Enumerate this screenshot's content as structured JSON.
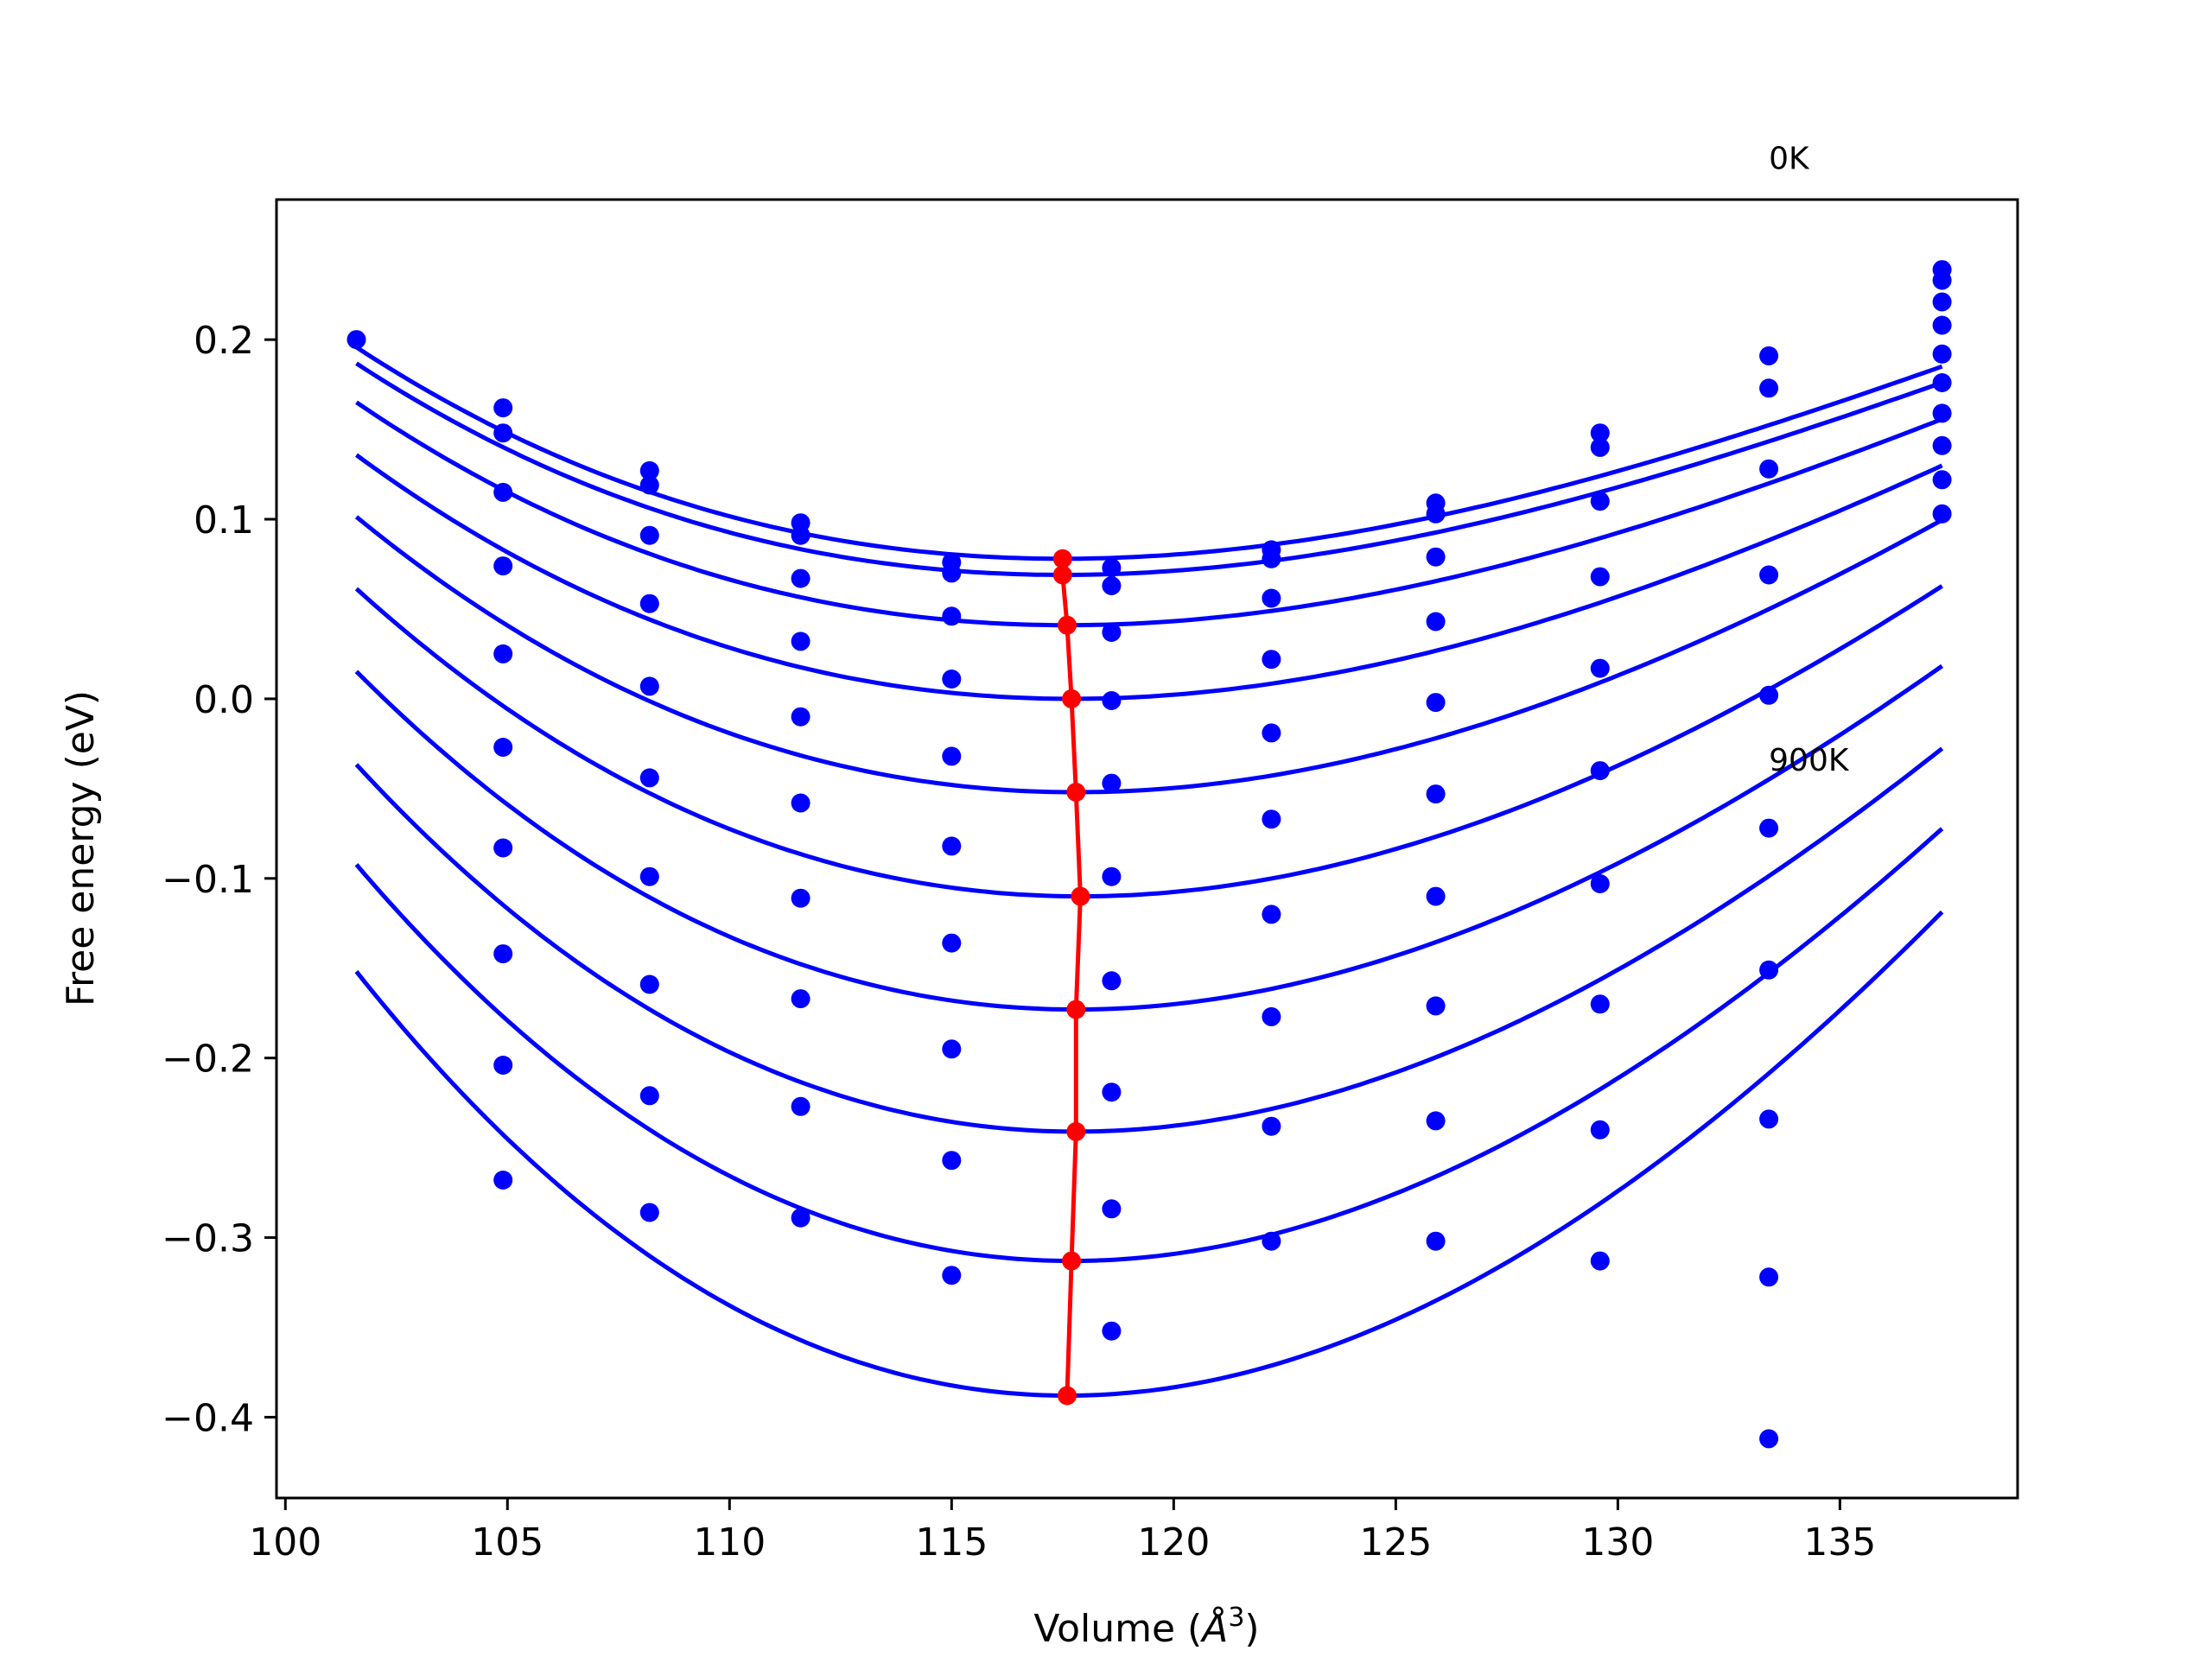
{
  "chart_data": {
    "type": "line",
    "title": "",
    "xlabel_main": "Volume (",
    "xlabel_unit": "Å",
    "xlabel_sup": "3",
    "xlabel_close": ")",
    "ylabel": "Free energy (eV)",
    "xlim": [
      99.8,
      139.0
    ],
    "ylim": [
      -0.445,
      0.278
    ],
    "xticks": [
      100,
      105,
      110,
      115,
      120,
      125,
      130,
      135
    ],
    "xtick_labels": [
      "100",
      "105",
      "110",
      "115",
      "120",
      "125",
      "130",
      "135"
    ],
    "yticks": [
      -0.4,
      -0.3,
      -0.2,
      -0.1,
      0.0,
      0.1,
      0.2
    ],
    "ytick_labels": [
      "−0.4",
      "−0.3",
      "−0.2",
      "−0.1",
      "0.0",
      "0.1",
      "0.2"
    ],
    "grid": false,
    "annotations": [
      {
        "text": "0K",
        "x": 133.4,
        "y": 0.295
      },
      {
        "text": "900K",
        "x": 133.4,
        "y": -0.04
      }
    ],
    "volumes": [
      101.6,
      104.9,
      108.2,
      111.6,
      115.0,
      118.6,
      122.2,
      125.9,
      129.6,
      133.4,
      137.3
    ],
    "fit_curves": [
      {
        "vmin": 117.5,
        "fmin": 0.078,
        "b": 0.00038,
        "c": 5.4e-06,
        "x_start": 101.6,
        "x_end": 137.3
      },
      {
        "vmin": 117.5,
        "fmin": 0.069,
        "b": 0.00038,
        "c": 5.4e-06,
        "x_start": 101.6,
        "x_end": 137.3
      },
      {
        "vmin": 117.6,
        "fmin": 0.041,
        "b": 0.0004,
        "c": 5.3e-06,
        "x_start": 101.6,
        "x_end": 137.3
      },
      {
        "vmin": 117.7,
        "fmin": 0.0,
        "b": 0.00044,
        "c": 5.2e-06,
        "x_start": 101.6,
        "x_end": 137.3
      },
      {
        "vmin": 117.8,
        "fmin": -0.052,
        "b": 0.0005,
        "c": 5.2e-06,
        "x_start": 101.6,
        "x_end": 137.3
      },
      {
        "vmin": 117.9,
        "fmin": -0.11,
        "b": 0.00056,
        "c": 5.2e-06,
        "x_start": 101.6,
        "x_end": 137.3
      },
      {
        "vmin": 117.8,
        "fmin": -0.173,
        "b": 0.00062,
        "c": 6e-06,
        "x_start": 101.6,
        "x_end": 137.3
      },
      {
        "vmin": 117.8,
        "fmin": -0.241,
        "b": 0.00068,
        "c": 6.1e-06,
        "x_start": 101.6,
        "x_end": 137.3
      },
      {
        "vmin": 117.7,
        "fmin": -0.313,
        "b": 0.00075,
        "c": 6.3e-06,
        "x_start": 101.6,
        "x_end": 137.3
      },
      {
        "vmin": 117.6,
        "fmin": -0.388,
        "b": 0.00082,
        "c": 6.4e-06,
        "x_start": 101.6,
        "x_end": 137.3
      }
    ],
    "data_points": [
      {
        "x": 101.6,
        "y": 0.2
      },
      {
        "x": 104.9,
        "y": 0.162
      },
      {
        "x": 104.9,
        "y": 0.148
      },
      {
        "x": 104.9,
        "y": 0.115
      },
      {
        "x": 104.9,
        "y": 0.074
      },
      {
        "x": 104.9,
        "y": 0.025
      },
      {
        "x": 104.9,
        "y": -0.027
      },
      {
        "x": 104.9,
        "y": -0.083
      },
      {
        "x": 104.9,
        "y": -0.142
      },
      {
        "x": 104.9,
        "y": -0.204
      },
      {
        "x": 104.9,
        "y": -0.268
      },
      {
        "x": 108.2,
        "y": 0.127
      },
      {
        "x": 108.2,
        "y": 0.119
      },
      {
        "x": 108.2,
        "y": 0.091
      },
      {
        "x": 108.2,
        "y": 0.053
      },
      {
        "x": 108.2,
        "y": 0.007
      },
      {
        "x": 108.2,
        "y": -0.044
      },
      {
        "x": 108.2,
        "y": -0.099
      },
      {
        "x": 108.2,
        "y": -0.159
      },
      {
        "x": 108.2,
        "y": -0.221
      },
      {
        "x": 108.2,
        "y": -0.286
      },
      {
        "x": 111.6,
        "y": 0.098
      },
      {
        "x": 111.6,
        "y": 0.091
      },
      {
        "x": 111.6,
        "y": 0.067
      },
      {
        "x": 111.6,
        "y": 0.032
      },
      {
        "x": 111.6,
        "y": -0.01
      },
      {
        "x": 111.6,
        "y": -0.058
      },
      {
        "x": 111.6,
        "y": -0.111
      },
      {
        "x": 111.6,
        "y": -0.167
      },
      {
        "x": 111.6,
        "y": -0.227
      },
      {
        "x": 111.6,
        "y": -0.289
      },
      {
        "x": 115.0,
        "y": 0.076
      },
      {
        "x": 115.0,
        "y": 0.07
      },
      {
        "x": 115.0,
        "y": 0.046
      },
      {
        "x": 115.0,
        "y": 0.011
      },
      {
        "x": 115.0,
        "y": -0.032
      },
      {
        "x": 115.0,
        "y": -0.082
      },
      {
        "x": 115.0,
        "y": -0.136
      },
      {
        "x": 115.0,
        "y": -0.195
      },
      {
        "x": 115.0,
        "y": -0.257
      },
      {
        "x": 115.0,
        "y": -0.321
      },
      {
        "x": 118.6,
        "y": 0.073
      },
      {
        "x": 118.6,
        "y": 0.063
      },
      {
        "x": 118.6,
        "y": 0.037
      },
      {
        "x": 118.6,
        "y": -0.001
      },
      {
        "x": 118.6,
        "y": -0.047
      },
      {
        "x": 118.6,
        "y": -0.099
      },
      {
        "x": 118.6,
        "y": -0.157
      },
      {
        "x": 118.6,
        "y": -0.219
      },
      {
        "x": 118.6,
        "y": -0.284
      },
      {
        "x": 118.6,
        "y": -0.352
      },
      {
        "x": 122.2,
        "y": 0.083
      },
      {
        "x": 122.2,
        "y": 0.078
      },
      {
        "x": 122.2,
        "y": 0.056
      },
      {
        "x": 122.2,
        "y": 0.022
      },
      {
        "x": 122.2,
        "y": -0.019
      },
      {
        "x": 122.2,
        "y": -0.067
      },
      {
        "x": 122.2,
        "y": -0.12
      },
      {
        "x": 122.2,
        "y": -0.177
      },
      {
        "x": 122.2,
        "y": -0.238
      },
      {
        "x": 122.2,
        "y": -0.302
      },
      {
        "x": 125.9,
        "y": 0.109
      },
      {
        "x": 125.9,
        "y": 0.103
      },
      {
        "x": 125.9,
        "y": 0.079
      },
      {
        "x": 125.9,
        "y": 0.043
      },
      {
        "x": 125.9,
        "y": -0.002
      },
      {
        "x": 125.9,
        "y": -0.053
      },
      {
        "x": 125.9,
        "y": -0.11
      },
      {
        "x": 125.9,
        "y": -0.171
      },
      {
        "x": 125.9,
        "y": -0.235
      },
      {
        "x": 125.9,
        "y": -0.302
      },
      {
        "x": 129.6,
        "y": 0.148
      },
      {
        "x": 129.6,
        "y": 0.14
      },
      {
        "x": 129.6,
        "y": 0.11
      },
      {
        "x": 129.6,
        "y": 0.068
      },
      {
        "x": 129.6,
        "y": 0.017
      },
      {
        "x": 129.6,
        "y": -0.04
      },
      {
        "x": 129.6,
        "y": -0.103
      },
      {
        "x": 129.6,
        "y": -0.17
      },
      {
        "x": 129.6,
        "y": -0.24
      },
      {
        "x": 129.6,
        "y": -0.313
      },
      {
        "x": 133.4,
        "y": 0.191
      },
      {
        "x": 133.4,
        "y": 0.173
      },
      {
        "x": 133.4,
        "y": 0.128
      },
      {
        "x": 133.4,
        "y": 0.069
      },
      {
        "x": 133.4,
        "y": 0.002
      },
      {
        "x": 133.4,
        "y": -0.072
      },
      {
        "x": 133.4,
        "y": -0.151
      },
      {
        "x": 133.4,
        "y": -0.234
      },
      {
        "x": 133.4,
        "y": -0.322
      },
      {
        "x": 133.4,
        "y": -0.412
      },
      {
        "x": 137.3,
        "y": 0.239
      },
      {
        "x": 137.3,
        "y": 0.233
      },
      {
        "x": 137.3,
        "y": 0.221
      },
      {
        "x": 137.3,
        "y": 0.208
      },
      {
        "x": 137.3,
        "y": 0.192
      },
      {
        "x": 137.3,
        "y": 0.176
      },
      {
        "x": 137.3,
        "y": 0.159
      },
      {
        "x": 137.3,
        "y": 0.141
      },
      {
        "x": 137.3,
        "y": 0.122
      },
      {
        "x": 137.3,
        "y": 0.103
      }
    ],
    "minimum_path": {
      "x": [
        117.5,
        117.5,
        117.6,
        117.7,
        117.8,
        117.9,
        117.8,
        117.8,
        117.7,
        117.6
      ],
      "y": [
        0.078,
        0.069,
        0.041,
        0.0,
        -0.052,
        -0.11,
        -0.173,
        -0.241,
        -0.313,
        -0.388
      ]
    },
    "colors": {
      "fit": "#0000ff",
      "points": "#0000ff",
      "minimum_path": "#ff0000",
      "axes": "#000000"
    }
  }
}
